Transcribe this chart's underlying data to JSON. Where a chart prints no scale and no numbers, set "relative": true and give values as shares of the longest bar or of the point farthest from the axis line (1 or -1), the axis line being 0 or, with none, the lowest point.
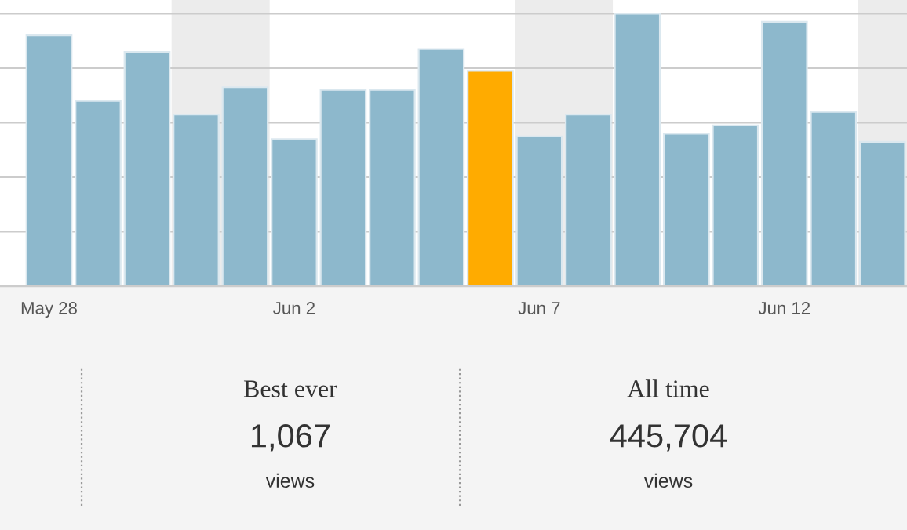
{
  "chart_data": [
    {
      "type": "bar",
      "relative": true,
      "categories": [
        "May 28",
        null,
        null,
        null,
        null,
        "Jun 2",
        null,
        null,
        null,
        null,
        "Jun 7",
        null,
        null,
        null,
        null,
        "Jun 12",
        null,
        null
      ],
      "values": [
        0.92,
        0.68,
        0.86,
        0.63,
        0.73,
        0.54,
        0.72,
        0.72,
        0.87,
        0.79,
        0.55,
        0.63,
        1.0,
        0.56,
        0.59,
        0.97,
        0.64,
        0.53
      ],
      "colors": [
        "#8db8cc",
        "#8db8cc",
        "#8db8cc",
        "#8db8cc",
        "#8db8cc",
        "#8db8cc",
        "#8db8cc",
        "#8db8cc",
        "#8db8cc",
        "#ffab00",
        "#8db8cc",
        "#8db8cc",
        "#8db8cc",
        "#8db8cc",
        "#8db8cc",
        "#8db8cc",
        "#8db8cc",
        "#8db8cc"
      ],
      "grid": "y"
    },
    {
      "type": "other",
      "annotations": [
        "Best ever",
        "1,067",
        "views",
        "All time",
        "445,704",
        "views"
      ]
    }
  ]
}
